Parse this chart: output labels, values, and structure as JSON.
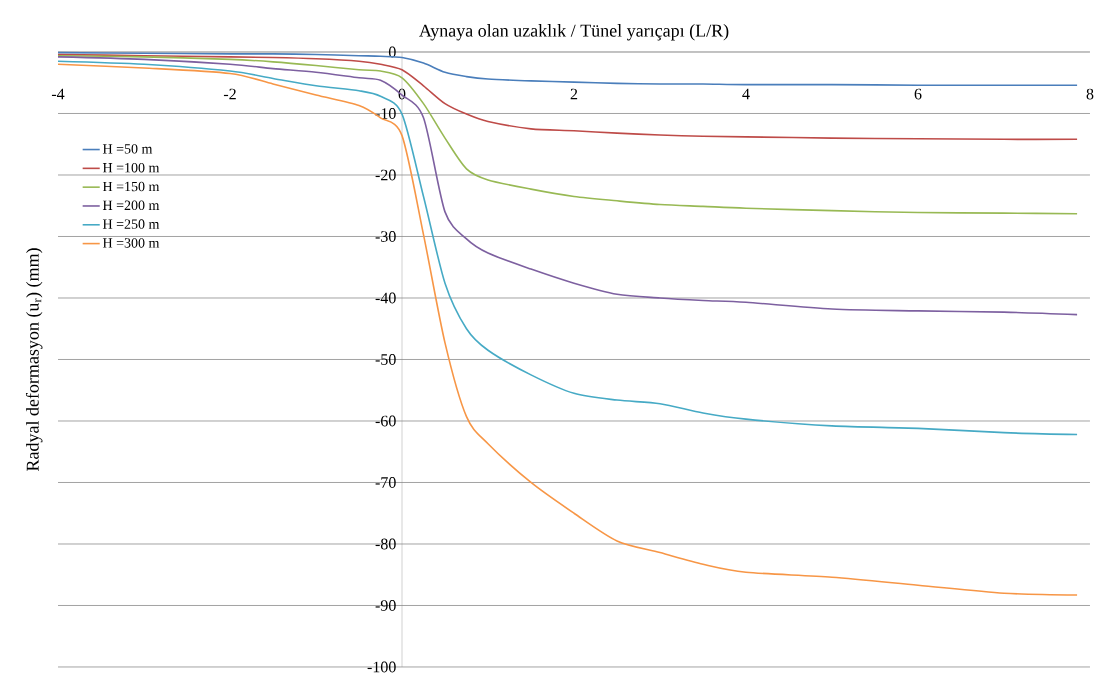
{
  "chart_data": {
    "type": "line",
    "xlabel": "Aynaya olan uzaklık / Tünel yarıçapı (L/R)",
    "ylabel": "Radyal deformasyon (u$_{r}$) (mm)",
    "x": [
      -4,
      -3,
      -2,
      -1.5,
      -1,
      -0.5,
      -0.25,
      0,
      0.25,
      0.5,
      0.75,
      1,
      1.5,
      2,
      2.5,
      3,
      3.5,
      4,
      5,
      6,
      7,
      7.85
    ],
    "series": [
      {
        "name": "H =50 m",
        "color": "#4a7ebb",
        "values": [
          -0.1,
          -0.2,
          -0.3,
          -0.3,
          -0.4,
          -0.6,
          -0.7,
          -0.9,
          -1.8,
          -3.3,
          -4,
          -4.4,
          -4.7,
          -4.9,
          -5.1,
          -5.2,
          -5.2,
          -5.3,
          -5.3,
          -5.4,
          -5.4,
          -5.4
        ]
      },
      {
        "name": "H =100 m",
        "color": "#be4b48",
        "values": [
          -0.4,
          -0.6,
          -0.8,
          -0.9,
          -1.1,
          -1.5,
          -2,
          -2.9,
          -5.5,
          -8.4,
          -10.1,
          -11.3,
          -12.5,
          -12.8,
          -13.2,
          -13.5,
          -13.7,
          -13.8,
          -14,
          -14.1,
          -14.2,
          -14.2
        ]
      },
      {
        "name": "H =150 m",
        "color": "#98b954",
        "values": [
          -0.6,
          -0.8,
          -1.2,
          -1.6,
          -2.2,
          -2.9,
          -3.1,
          -4.2,
          -8.4,
          -14,
          -19,
          -20.8,
          -22.3,
          -23.5,
          -24.2,
          -24.8,
          -25.1,
          -25.4,
          -25.8,
          -26.1,
          -26.2,
          -26.3
        ]
      },
      {
        "name": "H =200 m",
        "color": "#7d60a0",
        "values": [
          -0.8,
          -1.2,
          -2,
          -2.7,
          -3.3,
          -4.2,
          -4.6,
          -7,
          -10.7,
          -26,
          -30.4,
          -32.7,
          -35.3,
          -37.6,
          -39.4,
          -40,
          -40.4,
          -40.7,
          -41.8,
          -42.1,
          -42.3,
          -42.7
        ]
      },
      {
        "name": "H =250 m",
        "color": "#46aac5",
        "values": [
          -1.5,
          -2,
          -3.1,
          -4.3,
          -5.5,
          -6.3,
          -7.2,
          -10.1,
          -23.5,
          -37.6,
          -45,
          -48.5,
          -52.5,
          -55.5,
          -56.6,
          -57.2,
          -58.7,
          -59.7,
          -60.8,
          -61.2,
          -61.9,
          -62.2
        ]
      },
      {
        "name": "H =300 m",
        "color": "#f79646",
        "values": [
          -2,
          -2.6,
          -3.5,
          -5.2,
          -7,
          -8.7,
          -10.7,
          -13.6,
          -29.7,
          -47.3,
          -59.3,
          -63.7,
          -70,
          -75,
          -79.5,
          -81.4,
          -83.3,
          -84.6,
          -85.4,
          -86.7,
          -88,
          -88.3
        ]
      }
    ],
    "xlim": [
      -4,
      8
    ],
    "xticks": [
      -4,
      -2,
      0,
      2,
      4,
      6,
      8
    ],
    "ylim": [
      -100,
      0
    ],
    "yticks": [
      0,
      -10,
      -20,
      -30,
      -40,
      -50,
      -60,
      -70,
      -80,
      -90,
      -100
    ],
    "grid": "y",
    "legend": "left",
    "line_style": "solid"
  }
}
